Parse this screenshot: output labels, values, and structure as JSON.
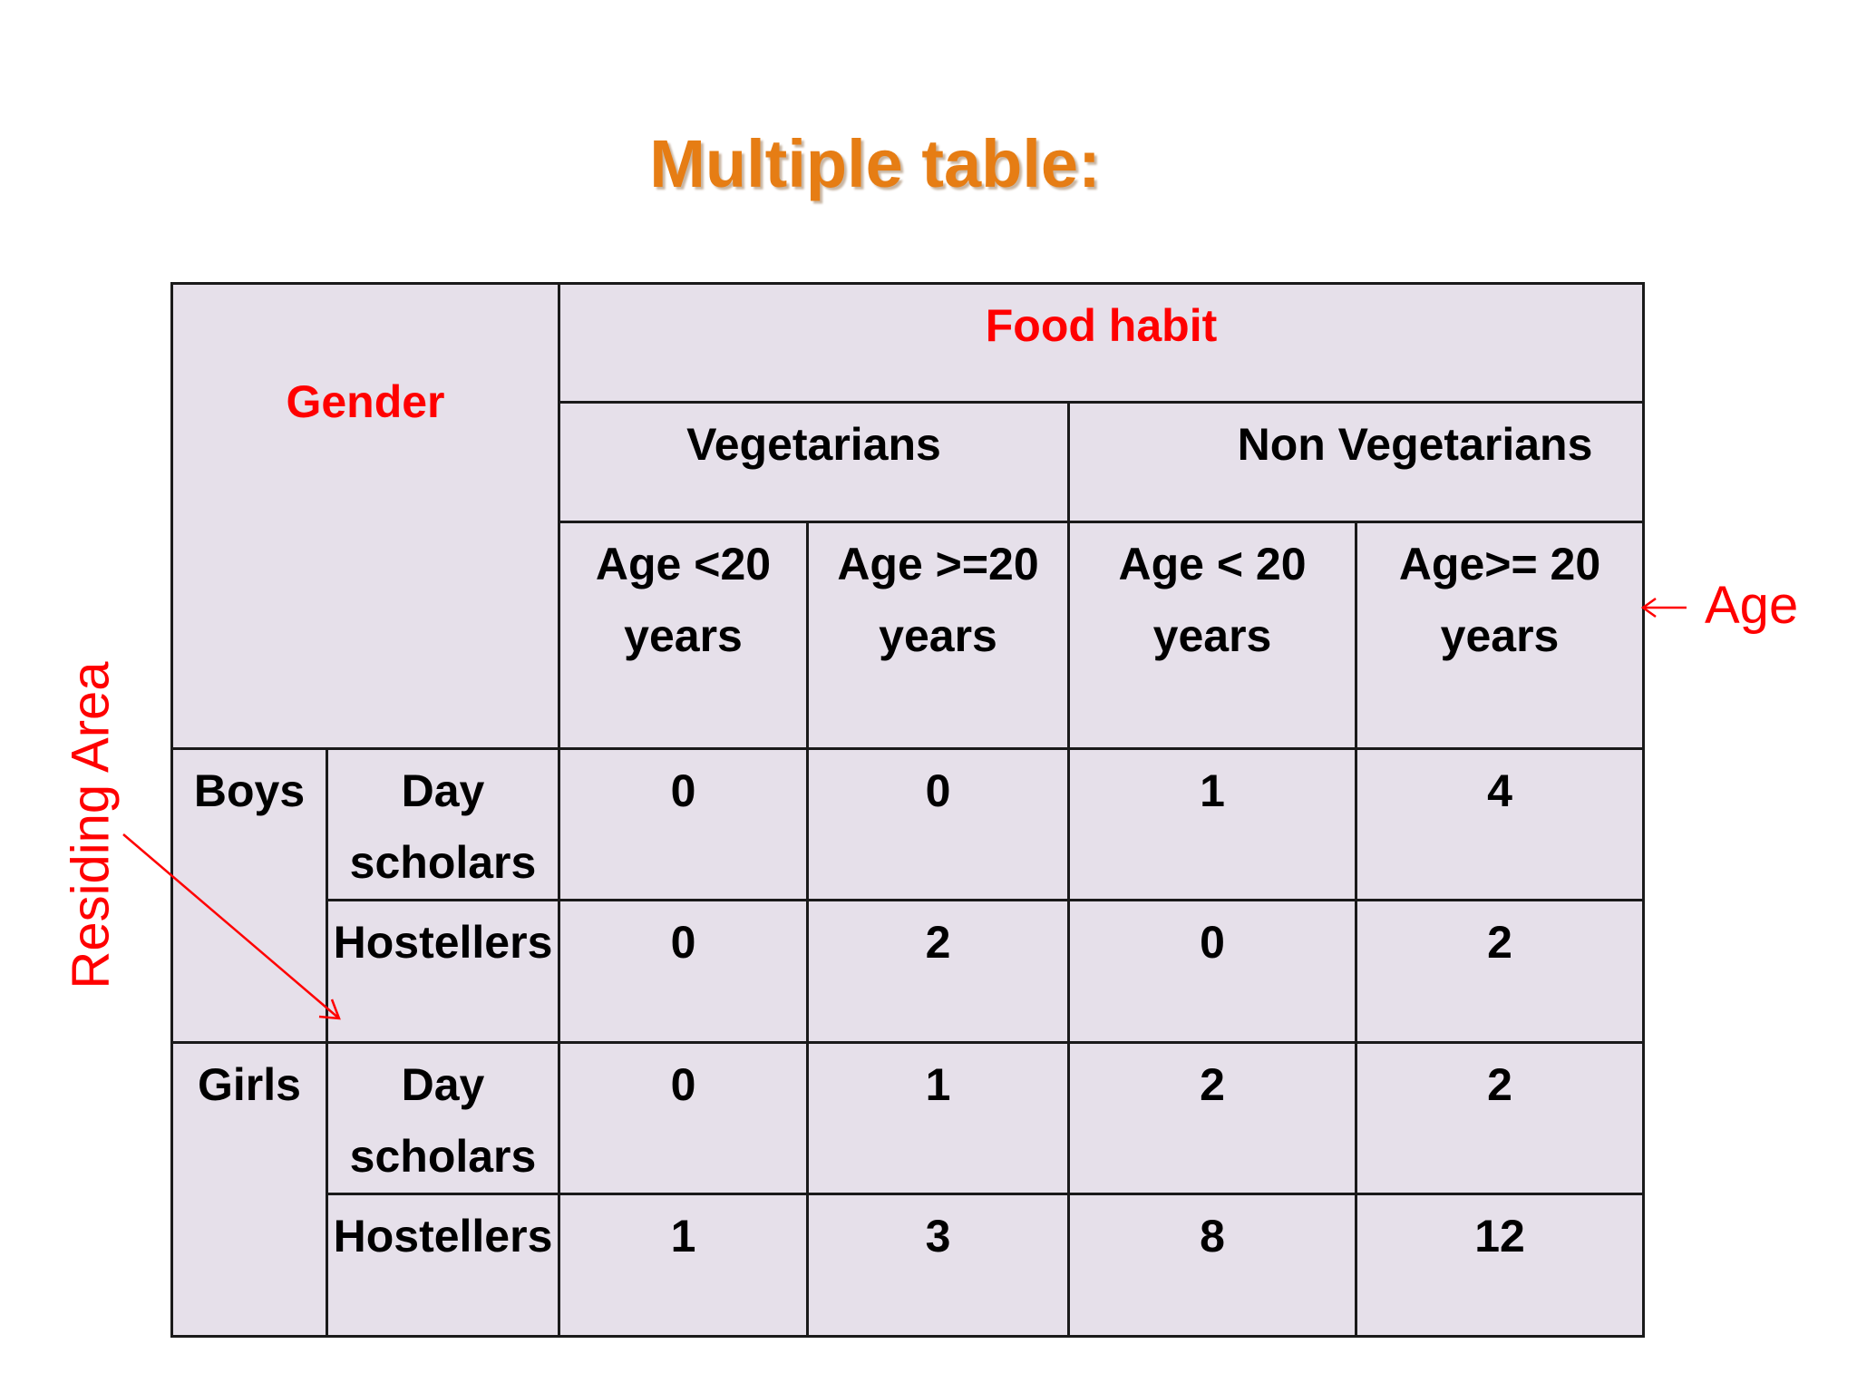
{
  "slide": {
    "title": "Multiple table:",
    "annotations": {
      "residing_area": "Residing Area",
      "age": "Age"
    }
  },
  "table": {
    "gender_header": "Gender",
    "food_habit_header": "Food habit",
    "groups": [
      "Vegetarians",
      "Non Vegetarians"
    ],
    "age_cols": [
      "Age <20 years",
      "Age >=20 years",
      "Age < 20 years",
      "Age>= 20 years"
    ],
    "rows": [
      {
        "gender": "Boys",
        "area": "Day scholars",
        "values": [
          "0",
          "0",
          "1",
          "4"
        ]
      },
      {
        "gender": "",
        "area": "Hostellers",
        "values": [
          "0",
          "2",
          "0",
          "2"
        ]
      },
      {
        "gender": "Girls",
        "area": "Day scholars",
        "values": [
          "0",
          "1",
          "2",
          "2"
        ]
      },
      {
        "gender": "",
        "area": "Hostellers",
        "values": [
          "1",
          "3",
          "8",
          "12"
        ]
      }
    ]
  },
  "colors": {
    "title": "#e67d14",
    "accent_red": "#ff0000",
    "header_bg": "#e6e0ea",
    "age_bg": "#ccffcc",
    "area_bg": "#ffffcc"
  }
}
